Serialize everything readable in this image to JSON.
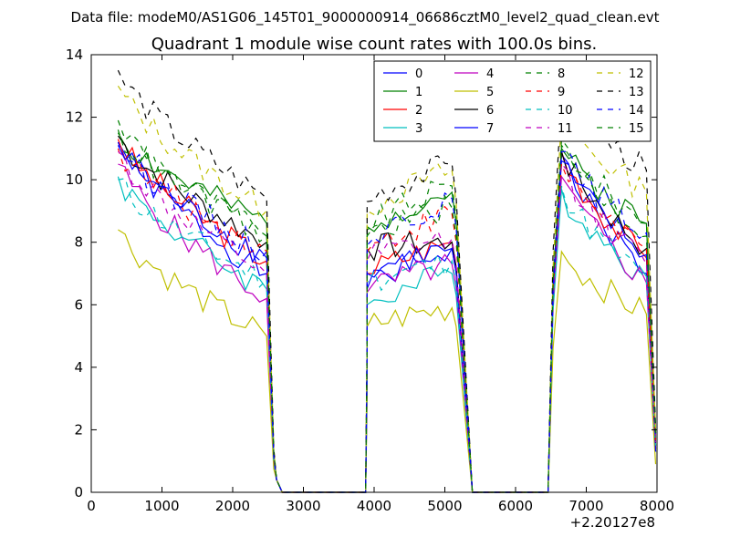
{
  "figure": {
    "suptitle": "Data file: modeM0/AS1G06_145T01_9000000914_06686cztM0_level2_quad_clean.evt"
  },
  "chart_data": {
    "type": "line",
    "title": "Quadrant 1 module wise count rates with 100.0s bins.",
    "xlabel": "",
    "ylabel": "",
    "x_offset_label": "+2.20127e8",
    "xlim": [
      0,
      8000
    ],
    "ylim": [
      0,
      14
    ],
    "xticks": [
      0,
      1000,
      2000,
      3000,
      4000,
      5000,
      6000,
      7000,
      8000
    ],
    "yticks": [
      0,
      2,
      4,
      6,
      8,
      10,
      12,
      14
    ],
    "grid": false,
    "legend_position": "top-right",
    "legend_columns": 4,
    "segments": [
      {
        "start": 380,
        "end": 2480
      },
      {
        "start": 3900,
        "end": 5080
      },
      {
        "start": 6650,
        "end": 7880
      }
    ],
    "drops": [
      {
        "x0": 2480,
        "x1": 2580,
        "x2": 2620,
        "x3": 2700
      },
      {
        "x0": 5080,
        "x1": 5160,
        "x2": 5390,
        "x3": 5400
      },
      {
        "x0": 6460,
        "x1": 6530,
        "x2": 6650
      }
    ],
    "end_point": {
      "x": 7980
    },
    "series": [
      {
        "name": "0",
        "color": "#0000ff",
        "dash": "solid",
        "levels": [
          [
            11.2,
            7.0
          ],
          [
            6.5,
            7.8
          ],
          [
            10.8,
            7.0
          ]
        ],
        "end_value": 1.3
      },
      {
        "name": "1",
        "color": "#008000",
        "dash": "solid",
        "levels": [
          [
            11.5,
            8.6
          ],
          [
            8.5,
            9.6
          ],
          [
            11.0,
            8.6
          ]
        ],
        "end_value": 1.7
      },
      {
        "name": "2",
        "color": "#ff0000",
        "dash": "solid",
        "levels": [
          [
            11.3,
            7.4
          ],
          [
            7.0,
            8.0
          ],
          [
            10.9,
            7.5
          ]
        ],
        "end_value": 1.4
      },
      {
        "name": "3",
        "color": "#00bfbf",
        "dash": "solid",
        "levels": [
          [
            10.1,
            6.5
          ],
          [
            6.0,
            7.0
          ],
          [
            9.7,
            6.9
          ]
        ],
        "end_value": 1.3
      },
      {
        "name": "4",
        "color": "#bf00bf",
        "dash": "solid",
        "levels": [
          [
            10.5,
            6.2
          ],
          [
            6.4,
            7.3
          ],
          [
            10.1,
            6.7
          ]
        ],
        "end_value": 1.4
      },
      {
        "name": "5",
        "color": "#bfbf00",
        "dash": "solid",
        "levels": [
          [
            8.4,
            5.0
          ],
          [
            5.3,
            5.9
          ],
          [
            7.7,
            5.7
          ]
        ],
        "end_value": 0.9
      },
      {
        "name": "6",
        "color": "#000000",
        "dash": "solid",
        "levels": [
          [
            11.4,
            8.0
          ],
          [
            7.8,
            8.0
          ],
          [
            10.9,
            7.8
          ]
        ],
        "end_value": 1.5
      },
      {
        "name": "7",
        "color": "#0000ff",
        "dash": "solid",
        "levels": [
          [
            11.1,
            7.5
          ],
          [
            7.0,
            7.8
          ],
          [
            10.6,
            7.6
          ]
        ],
        "end_value": 1.3
      },
      {
        "name": "8",
        "color": "#008000",
        "dash": "dashed",
        "levels": [
          [
            11.9,
            8.2
          ],
          [
            8.4,
            9.8
          ],
          [
            11.3,
            8.6
          ]
        ],
        "end_value": 1.8
      },
      {
        "name": "9",
        "color": "#ff0000",
        "dash": "dashed",
        "levels": [
          [
            11.0,
            7.7
          ],
          [
            7.7,
            8.9
          ],
          [
            10.5,
            7.8
          ]
        ],
        "end_value": 1.6
      },
      {
        "name": "10",
        "color": "#00bfbf",
        "dash": "dashed",
        "levels": [
          [
            10.0,
            6.8
          ],
          [
            6.7,
            7.4
          ],
          [
            9.8,
            6.8
          ]
        ],
        "end_value": 1.5
      },
      {
        "name": "11",
        "color": "#bf00bf",
        "dash": "dashed",
        "levels": [
          [
            10.9,
            7.0
          ],
          [
            7.4,
            8.1
          ],
          [
            10.5,
            7.3
          ]
        ],
        "end_value": 1.6
      },
      {
        "name": "12",
        "color": "#bfbf00",
        "dash": "dashed",
        "levels": [
          [
            13.0,
            9.0
          ],
          [
            9.0,
            10.3
          ],
          [
            12.0,
            9.6
          ]
        ],
        "end_value": 2.0
      },
      {
        "name": "13",
        "color": "#000000",
        "dash": "dashed",
        "levels": [
          [
            13.5,
            9.4
          ],
          [
            9.3,
            10.5
          ],
          [
            12.8,
            10.3
          ]
        ],
        "end_value": 2.1
      },
      {
        "name": "14",
        "color": "#0000ff",
        "dash": "dashed",
        "levels": [
          [
            11.2,
            7.7
          ],
          [
            7.9,
            9.4
          ],
          [
            10.9,
            8.3
          ]
        ],
        "end_value": 1.8
      },
      {
        "name": "15",
        "color": "#008000",
        "dash": "dashed",
        "levels": [
          [
            11.6,
            8.2
          ],
          [
            8.2,
            9.1
          ],
          [
            11.1,
            8.2
          ]
        ],
        "end_value": 1.9
      }
    ]
  }
}
